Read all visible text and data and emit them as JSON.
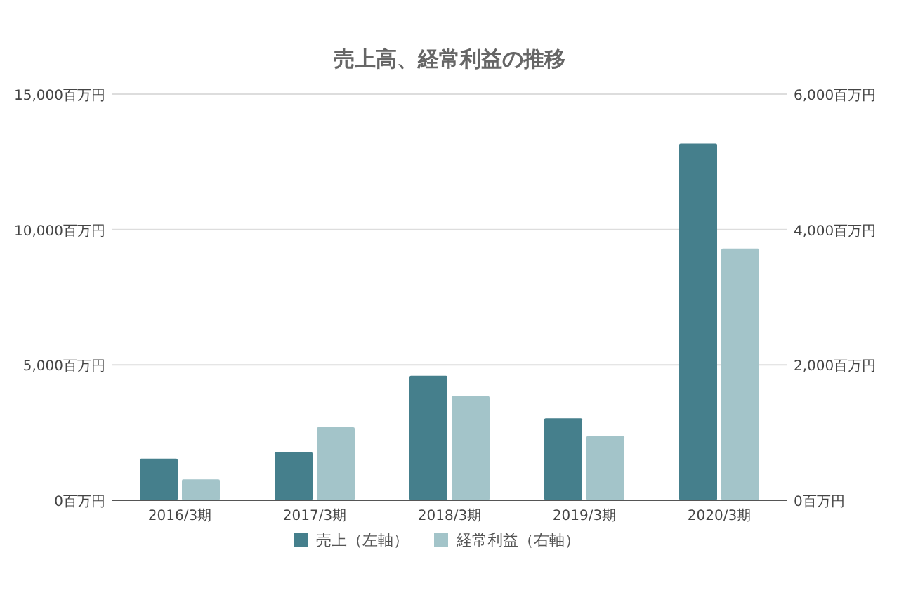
{
  "chart_data": {
    "type": "bar",
    "title": "売上高、経常利益の推移",
    "categories": [
      "2016/3期",
      "2017/3期",
      "2018/3期",
      "2019/3期",
      "2020/3期"
    ],
    "series": [
      {
        "name": "売上（左軸）",
        "color": "#457f8c",
        "values": [
          1540,
          1780,
          4600,
          3030,
          13170
        ]
      },
      {
        "name": "経常利益（右軸）",
        "color": "#a3c4c9",
        "axis": "y2",
        "values": [
          310,
          1080,
          1540,
          950,
          3720
        ]
      }
    ],
    "ylim": [
      0,
      15000
    ],
    "yticks": [
      {
        "value": 0,
        "label": "0百万円"
      },
      {
        "value": 5000,
        "label": "5,000百万円"
      },
      {
        "value": 10000,
        "label": "10,000百万円"
      },
      {
        "value": 15000,
        "label": "15,000百万円"
      }
    ],
    "y2lim": [
      0,
      6000
    ],
    "y2ticks": [
      {
        "value": 0,
        "label": "0百万円"
      },
      {
        "value": 2000,
        "label": "2,000百万円"
      },
      {
        "value": 4000,
        "label": "4,000百万円"
      },
      {
        "value": 6000,
        "label": "6,000百万円"
      }
    ],
    "grid": "y",
    "legend": "bottom"
  }
}
